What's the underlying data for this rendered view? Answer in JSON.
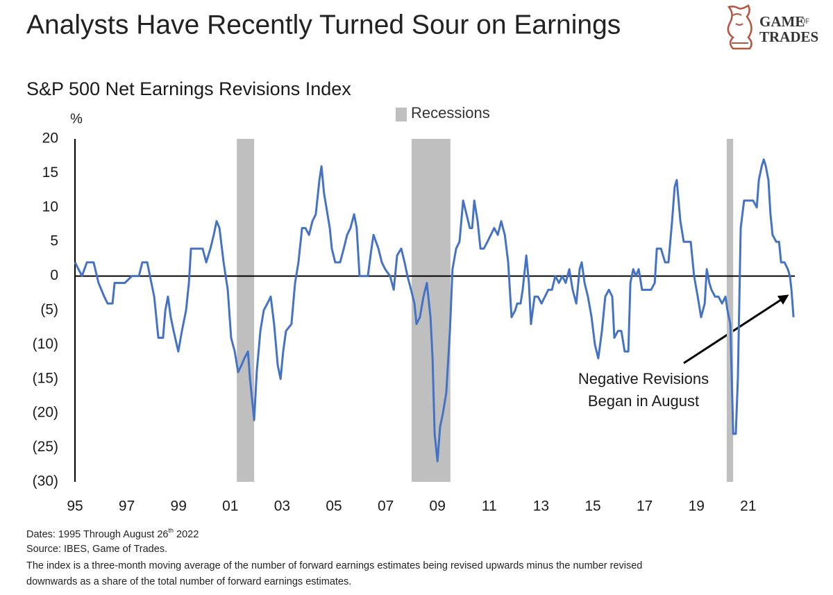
{
  "chart_data": {
    "type": "line",
    "title": "Analysts Have Recently Turned Sour on Earnings",
    "subtitle": "S&P 500 Net Earnings Revisions Index",
    "y_label": "%",
    "color": "#4472c4",
    "recessions": {
      "label": "Recessions",
      "color": "#bfbfbf",
      "periods": [
        [
          2001.25,
          2001.92
        ],
        [
          2008.0,
          2009.5
        ],
        [
          2020.17,
          2020.42
        ]
      ]
    },
    "annotation": [
      "Negative Revisions",
      "Began in August"
    ],
    "xlim": [
      1995,
      2022.8
    ],
    "ylim": [
      -30,
      20
    ],
    "xticks": [
      {
        "value": 1995,
        "label": "95"
      },
      {
        "value": 1997,
        "label": "97"
      },
      {
        "value": 1999,
        "label": "99"
      },
      {
        "value": 2001,
        "label": "01"
      },
      {
        "value": 2003,
        "label": "03"
      },
      {
        "value": 2005,
        "label": "05"
      },
      {
        "value": 2007,
        "label": "07"
      },
      {
        "value": 2009,
        "label": "09"
      },
      {
        "value": 2011,
        "label": "11"
      },
      {
        "value": 2013,
        "label": "13"
      },
      {
        "value": 2015,
        "label": "15"
      },
      {
        "value": 2017,
        "label": "17"
      },
      {
        "value": 2019,
        "label": "19"
      },
      {
        "value": 2021,
        "label": "21"
      }
    ],
    "yticks": [
      20,
      15,
      10,
      5,
      0,
      {
        "value": -5,
        "label": "(5)"
      },
      {
        "value": -10,
        "label": "(10)"
      },
      {
        "value": -15,
        "label": "(15)"
      },
      {
        "value": -20,
        "label": "(20)"
      },
      {
        "value": -25,
        "label": "(25)"
      },
      {
        "value": -30,
        "label": "(30)"
      }
    ],
    "x": [
      1995.0,
      1995.27,
      1995.46,
      1995.72,
      1995.91,
      1996.13,
      1996.26,
      1996.45,
      1996.53,
      1996.8,
      1996.93,
      1997.2,
      1997.47,
      1997.6,
      1997.79,
      1997.95,
      1998.06,
      1998.22,
      1998.4,
      1998.49,
      1998.59,
      1998.7,
      1998.81,
      1998.99,
      1999.13,
      1999.29,
      1999.4,
      1999.48,
      1999.75,
      1999.93,
      2000.07,
      2000.23,
      2000.36,
      2000.47,
      2000.58,
      2000.74,
      2000.9,
      2001.03,
      2001.17,
      2001.3,
      2001.43,
      2001.54,
      2001.68,
      2001.76,
      2001.92,
      2002.02,
      2002.16,
      2002.29,
      2002.43,
      2002.56,
      2002.69,
      2002.83,
      2002.94,
      2003.04,
      2003.15,
      2003.36,
      2003.5,
      2003.63,
      2003.77,
      2003.9,
      2004.04,
      2004.17,
      2004.3,
      2004.44,
      2004.52,
      2004.62,
      2004.71,
      2004.84,
      2004.92,
      2005.05,
      2005.24,
      2005.38,
      2005.51,
      2005.64,
      2005.78,
      2005.88,
      2005.99,
      2006.18,
      2006.31,
      2006.45,
      2006.53,
      2006.72,
      2006.85,
      2006.98,
      2007.17,
      2007.31,
      2007.44,
      2007.6,
      2007.73,
      2007.84,
      2007.98,
      2008.11,
      2008.19,
      2008.32,
      2008.46,
      2008.59,
      2008.73,
      2008.81,
      2008.89,
      2009.0,
      2009.1,
      2009.21,
      2009.34,
      2009.48,
      2009.58,
      2009.72,
      2009.85,
      2009.99,
      2010.12,
      2010.25,
      2010.34,
      2010.42,
      2010.55,
      2010.66,
      2010.79,
      2010.93,
      2011.06,
      2011.19,
      2011.33,
      2011.46,
      2011.6,
      2011.73,
      2011.86,
      2012.0,
      2012.08,
      2012.21,
      2012.29,
      2012.43,
      2012.53,
      2012.61,
      2012.75,
      2012.88,
      2013.02,
      2013.15,
      2013.28,
      2013.42,
      2013.55,
      2013.69,
      2013.82,
      2013.95,
      2014.09,
      2014.22,
      2014.36,
      2014.49,
      2014.57,
      2014.68,
      2014.81,
      2014.95,
      2015.08,
      2015.21,
      2015.35,
      2015.48,
      2015.62,
      2015.75,
      2015.83,
      2015.97,
      2016.1,
      2016.23,
      2016.37,
      2016.45,
      2016.56,
      2016.66,
      2016.77,
      2016.9,
      2017.09,
      2017.25,
      2017.39,
      2017.47,
      2017.63,
      2017.79,
      2017.92,
      2018.06,
      2018.16,
      2018.24,
      2018.38,
      2018.51,
      2018.65,
      2018.78,
      2018.91,
      2019.05,
      2019.18,
      2019.32,
      2019.4,
      2019.5,
      2019.58,
      2019.72,
      2019.85,
      2019.99,
      2020.12,
      2020.2,
      2020.31,
      2020.42,
      2020.52,
      2020.6,
      2020.71,
      2020.84,
      2021.01,
      2021.19,
      2021.33,
      2021.41,
      2021.52,
      2021.6,
      2021.68,
      2021.78,
      2021.86,
      2021.94,
      2022.08,
      2022.19,
      2022.27,
      2022.4,
      2022.53,
      2022.61,
      2022.67,
      2022.75
    ],
    "values": [
      2,
      0,
      2,
      2,
      -1,
      -3,
      -4,
      -4,
      -1,
      -1,
      -1,
      0,
      0,
      2,
      2,
      -1,
      -3,
      -9,
      -9,
      -5,
      -3,
      -6,
      -8,
      -11,
      -8,
      -5,
      -1,
      4,
      4,
      4,
      2,
      4,
      6,
      8,
      7,
      2,
      -2,
      -9,
      -11,
      -14,
      -13,
      -12,
      -11,
      -15,
      -21,
      -14,
      -8,
      -5,
      -4,
      -3,
      -7,
      -13,
      -15,
      -11,
      -8,
      -7,
      -1,
      2,
      7,
      7,
      6,
      8,
      9,
      14,
      16,
      12,
      10,
      7,
      4,
      2,
      2,
      4,
      6,
      7,
      9,
      7,
      0,
      0,
      0,
      4,
      6,
      4,
      2,
      1,
      0,
      -2,
      3,
      4,
      2,
      0,
      -2,
      -4,
      -7,
      -6,
      -3,
      -1,
      -6,
      -12,
      -23,
      -27,
      -22,
      -20,
      -17,
      -8,
      1,
      4,
      5,
      11,
      9,
      7,
      7,
      11,
      8,
      4,
      4,
      5,
      6,
      7,
      6,
      8,
      6,
      2,
      -6,
      -5,
      -4,
      -4,
      -2,
      3,
      -1,
      -7,
      -3,
      -3,
      -4,
      -3,
      -2,
      -2,
      0,
      -1,
      0,
      -1,
      1,
      -2,
      -4,
      1,
      2,
      -1,
      -3,
      -6,
      -10,
      -12,
      -8,
      -3,
      -2,
      -3,
      -9,
      -8,
      -8,
      -11,
      -11,
      -1,
      1,
      0,
      1,
      -2,
      -2,
      -2,
      -1,
      4,
      4,
      2,
      2,
      8,
      13,
      14,
      8,
      5,
      5,
      5,
      0,
      -3,
      -6,
      -4,
      1,
      -1,
      -2,
      -3,
      -3,
      -4,
      -3,
      -5,
      -7,
      -23,
      -23,
      -15,
      7,
      11,
      11,
      11,
      10,
      14,
      16,
      17,
      16,
      14,
      9,
      6,
      5,
      5,
      2,
      2,
      1,
      0,
      -2,
      -6
    ]
  },
  "logo": {
    "lines": [
      "GAME",
      "OF",
      "TRADES"
    ]
  },
  "notes": [
    {
      "text": "Dates: 1995 Through August 26",
      "sup": "th",
      "rest": " 2022"
    },
    {
      "text": "Source: IBES, Game of Trades."
    },
    {
      "text": "The index is a three-month moving average of the number of forward earnings estimates being revised upwards minus the number revised"
    },
    {
      "text": "downwards as a share of the total number of forward earnings estimates."
    }
  ]
}
